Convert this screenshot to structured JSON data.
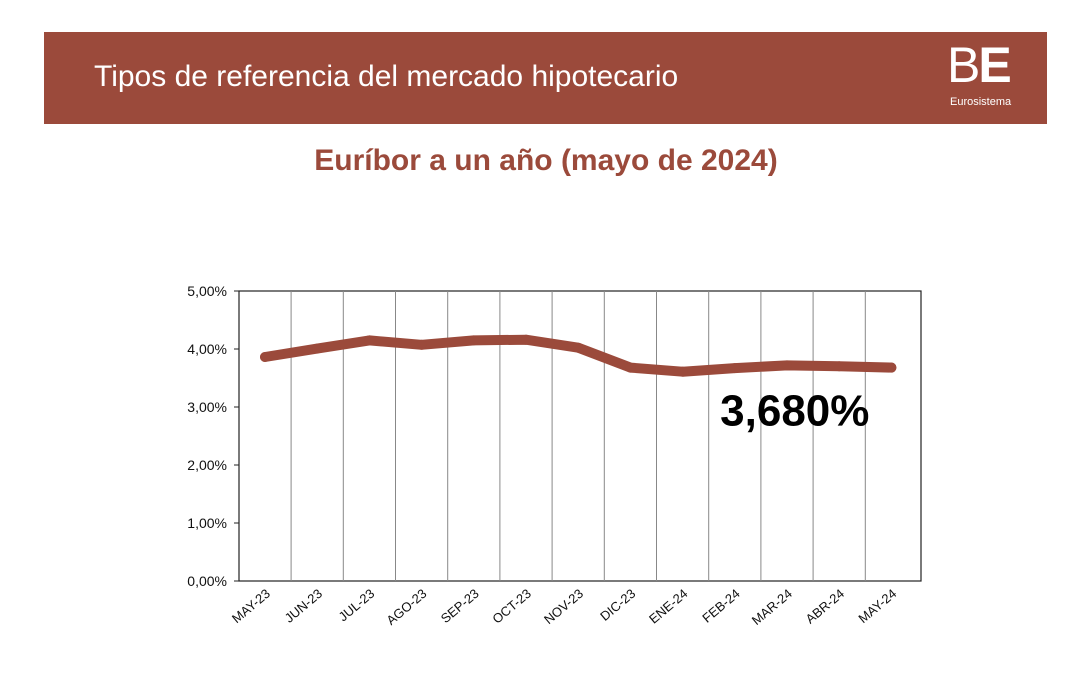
{
  "header": {
    "title": "Tipos de referencia del mercado hipotecario",
    "logo_mark_light": "B",
    "logo_mark_bold": "E",
    "logo_subtitle": "Eurosistema"
  },
  "colors": {
    "brand": "#9b4a3b",
    "line": "#9b4a3b",
    "grid": "#888888",
    "background": "#ffffff"
  },
  "chart_data": {
    "type": "line",
    "title": "Euríbor a un año (mayo de 2024)",
    "categories": [
      "MAY-23",
      "JUN-23",
      "JUL-23",
      "AGO-23",
      "SEP-23",
      "OCT-23",
      "NOV-23",
      "DIC-23",
      "ENE-24",
      "FEB-24",
      "MAR-24",
      "ABR-24",
      "MAY-24"
    ],
    "series": [
      {
        "values": [
          3.862,
          4.007,
          4.149,
          4.073,
          4.149,
          4.16,
          4.022,
          3.679,
          3.609,
          3.671,
          3.718,
          3.703,
          3.68
        ]
      }
    ],
    "y_ticks": [
      {
        "value": 0,
        "label": "0,00%"
      },
      {
        "value": 1,
        "label": "1,00%"
      },
      {
        "value": 2,
        "label": "2,00%"
      },
      {
        "value": 3,
        "label": "3,00%"
      },
      {
        "value": 4,
        "label": "4,00%"
      },
      {
        "value": 5,
        "label": "5,00%"
      }
    ],
    "ylim": [
      0,
      5
    ],
    "xlabel": "",
    "ylabel": "",
    "grid": "vertical",
    "legend": "none",
    "annotation": {
      "text": "3,680%",
      "x": "MAY-24",
      "y": 3.68
    }
  }
}
